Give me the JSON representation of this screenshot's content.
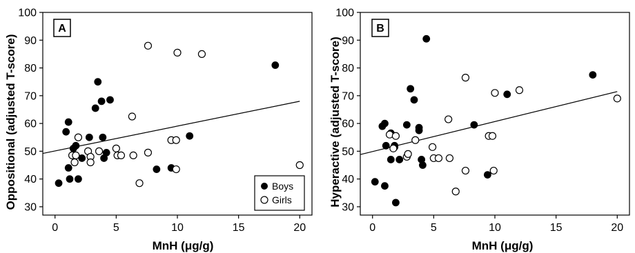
{
  "chart_data": [
    {
      "type": "scatter",
      "panel_label": "A",
      "xlabel": "MnH (μg/g)",
      "ylabel": "Oppositional (adjusted T-score)",
      "xlim": [
        -1,
        21
      ],
      "ylim": [
        27,
        100
      ],
      "xticks": [
        "0",
        "5",
        "10",
        "15",
        "20"
      ],
      "yticks": [
        "30",
        "40",
        "50",
        "60",
        "70",
        "80",
        "90",
        "100"
      ],
      "legend": {
        "position": "bottom-right",
        "entries": [
          "Boys",
          "Girls"
        ]
      },
      "fit_line": {
        "x": [
          -1,
          20
        ],
        "y": [
          49.2,
          68.0
        ]
      },
      "series": [
        {
          "name": "Boys",
          "marker": "filled-circle",
          "points": [
            [
              0.3,
              38.5
            ],
            [
              0.9,
              57
            ],
            [
              1.1,
              60.5
            ],
            [
              1.1,
              44
            ],
            [
              1.2,
              40
            ],
            [
              1.5,
              51
            ],
            [
              1.7,
              52
            ],
            [
              1.9,
              40
            ],
            [
              2.2,
              47.5
            ],
            [
              2.8,
              55
            ],
            [
              3.3,
              65.5
            ],
            [
              3.5,
              75
            ],
            [
              3.8,
              68
            ],
            [
              3.9,
              55
            ],
            [
              4.0,
              47.5
            ],
            [
              4.2,
              49.5
            ],
            [
              4.5,
              68.5
            ],
            [
              8.3,
              43.5
            ],
            [
              9.5,
              44
            ],
            [
              11.0,
              55.5
            ],
            [
              18.0,
              81
            ]
          ]
        },
        {
          "name": "Girls",
          "marker": "open-circle",
          "points": [
            [
              1.4,
              48.5
            ],
            [
              1.6,
              46
            ],
            [
              1.7,
              48.5
            ],
            [
              1.9,
              55
            ],
            [
              2.7,
              50
            ],
            [
              2.9,
              48
            ],
            [
              2.9,
              46
            ],
            [
              3.6,
              50
            ],
            [
              5.0,
              51
            ],
            [
              5.1,
              48.5
            ],
            [
              5.4,
              48.5
            ],
            [
              6.3,
              62.5
            ],
            [
              6.4,
              48.5
            ],
            [
              6.9,
              38.5
            ],
            [
              7.6,
              49.5
            ],
            [
              7.6,
              88
            ],
            [
              9.5,
              54
            ],
            [
              9.9,
              54
            ],
            [
              9.9,
              43.5
            ],
            [
              10.0,
              85.5
            ],
            [
              12.0,
              85
            ],
            [
              20.0,
              45
            ]
          ]
        }
      ]
    },
    {
      "type": "scatter",
      "panel_label": "B",
      "xlabel": "MnH (μg/g)",
      "ylabel": "Hyperactive (adjusted T-score)",
      "xlim": [
        -1,
        21
      ],
      "ylim": [
        27,
        100
      ],
      "xticks": [
        "0",
        "5",
        "10",
        "15",
        "20"
      ],
      "yticks": [
        "30",
        "40",
        "50",
        "60",
        "70",
        "80",
        "90",
        "100"
      ],
      "fit_line": {
        "x": [
          -1,
          20
        ],
        "y": [
          48.8,
          71.5
        ]
      },
      "series": [
        {
          "name": "Boys",
          "marker": "filled-circle",
          "points": [
            [
              0.2,
              39
            ],
            [
              0.8,
              59
            ],
            [
              1.0,
              60
            ],
            [
              1.0,
              37.5
            ],
            [
              1.1,
              52
            ],
            [
              1.5,
              56.5
            ],
            [
              1.5,
              47
            ],
            [
              1.8,
              51.5
            ],
            [
              1.8,
              52
            ],
            [
              1.9,
              31.5
            ],
            [
              2.2,
              47
            ],
            [
              2.8,
              59.5
            ],
            [
              3.1,
              72.5
            ],
            [
              3.4,
              68.5
            ],
            [
              3.8,
              57.5
            ],
            [
              3.8,
              58.5
            ],
            [
              4.0,
              47
            ],
            [
              4.1,
              45
            ],
            [
              4.4,
              90.5
            ],
            [
              8.3,
              59.5
            ],
            [
              9.4,
              41.5
            ],
            [
              11.0,
              70.5
            ],
            [
              18.0,
              77.5
            ]
          ]
        },
        {
          "name": "Girls",
          "marker": "open-circle",
          "points": [
            [
              1.4,
              56
            ],
            [
              1.7,
              51
            ],
            [
              1.9,
              55.5
            ],
            [
              2.8,
              48
            ],
            [
              2.9,
              49
            ],
            [
              3.5,
              54
            ],
            [
              4.9,
              51.5
            ],
            [
              5.0,
              47.5
            ],
            [
              5.4,
              47.5
            ],
            [
              6.2,
              61.5
            ],
            [
              6.3,
              47.5
            ],
            [
              6.8,
              35.5
            ],
            [
              7.6,
              76.5
            ],
            [
              7.6,
              43
            ],
            [
              9.5,
              55.5
            ],
            [
              9.8,
              55.5
            ],
            [
              9.9,
              43
            ],
            [
              10.0,
              71
            ],
            [
              12.0,
              72
            ],
            [
              20.0,
              69
            ]
          ]
        }
      ]
    }
  ]
}
